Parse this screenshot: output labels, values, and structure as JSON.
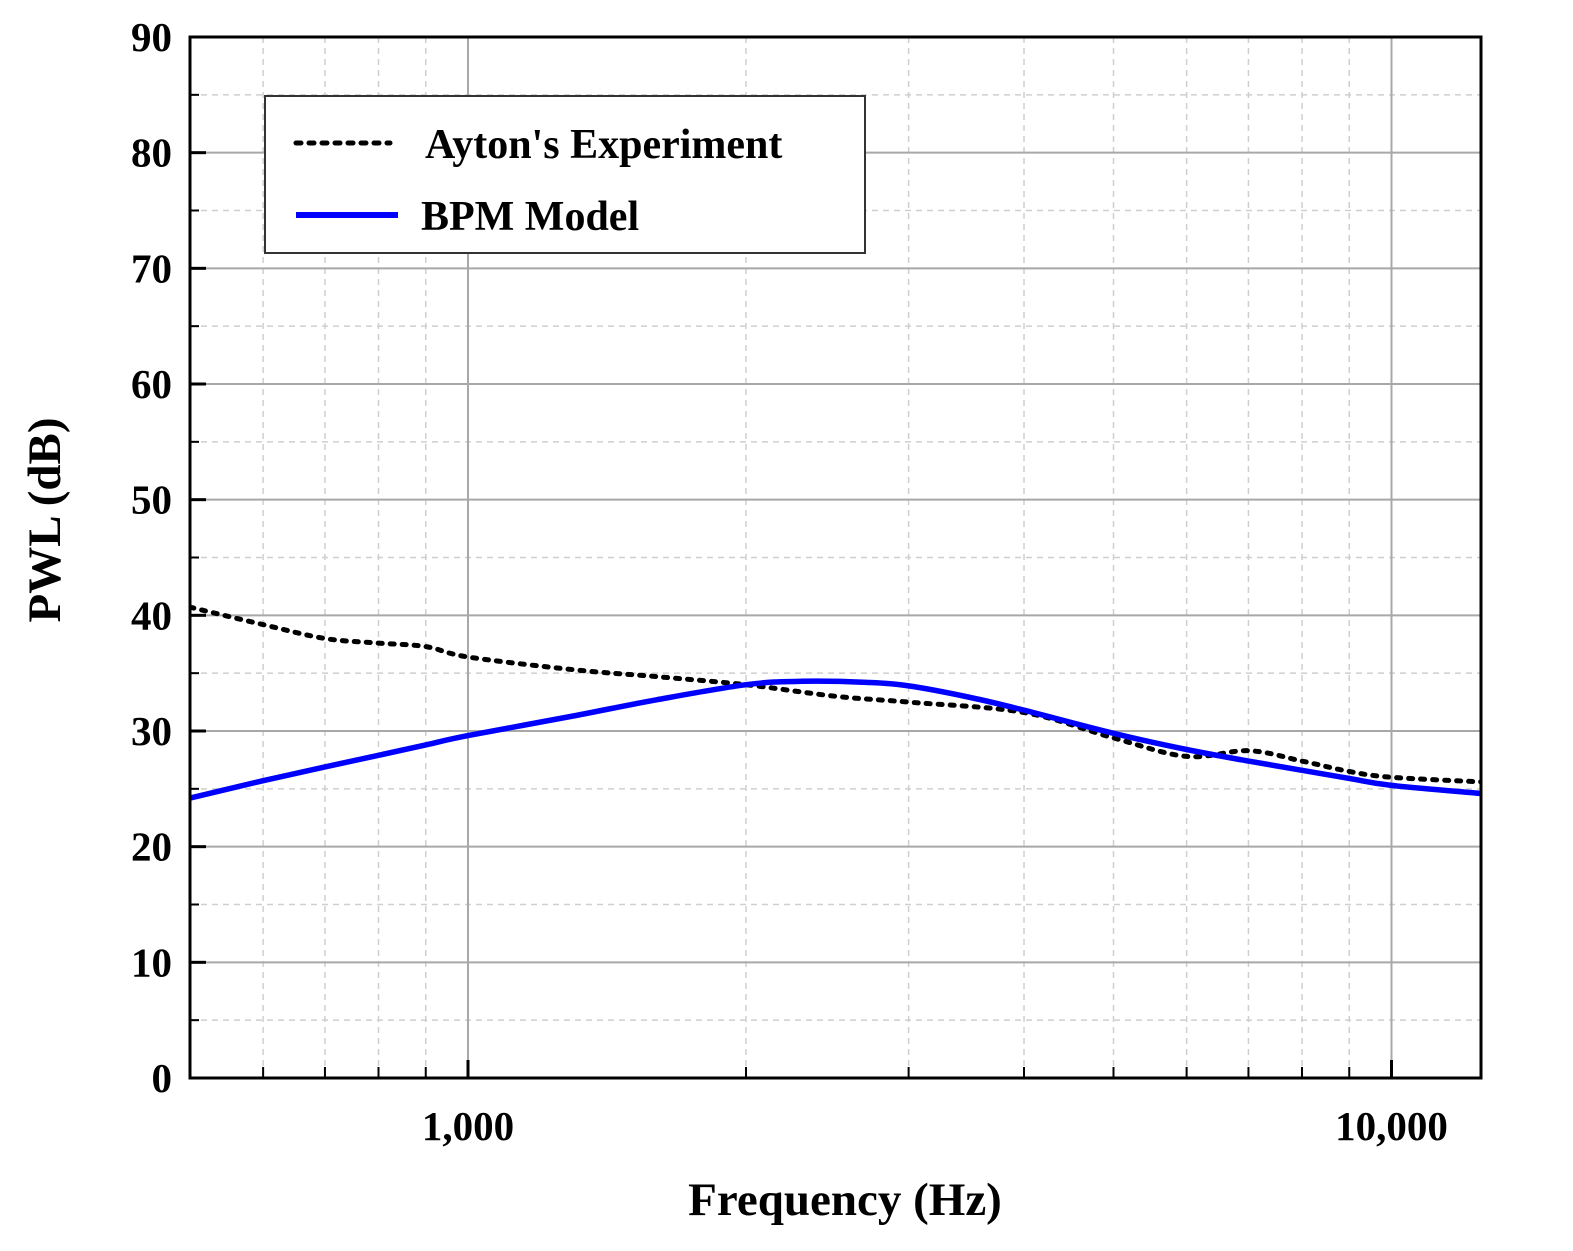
{
  "chart_data": {
    "type": "line",
    "xscale": "log",
    "xlim": [
      500,
      12500
    ],
    "ylim": [
      0,
      90
    ],
    "xlabel": "Frequency (Hz)",
    "ylabel": "PWL (dB)",
    "xticks": [
      {
        "value": 1000,
        "label": "1,000"
      },
      {
        "value": 10000,
        "label": "10,000"
      }
    ],
    "yticks": [
      {
        "value": 0,
        "label": "0"
      },
      {
        "value": 10,
        "label": "10"
      },
      {
        "value": 20,
        "label": "20"
      },
      {
        "value": 30,
        "label": "30"
      },
      {
        "value": 40,
        "label": "40"
      },
      {
        "value": 50,
        "label": "50"
      },
      {
        "value": 60,
        "label": "60"
      },
      {
        "value": 70,
        "label": "70"
      },
      {
        "value": 80,
        "label": "80"
      },
      {
        "value": 90,
        "label": "90"
      }
    ],
    "grid": true,
    "legend_position": "top-left",
    "series": [
      {
        "name": "Ayton's Experiment",
        "style": "dotted",
        "color": "#000000",
        "x": [
          500,
          600,
          700,
          800,
          900,
          1000,
          1300,
          1600,
          2000,
          2500,
          3000,
          4000,
          5000,
          6000,
          7000,
          8000,
          9000,
          10000,
          12500
        ],
        "y": [
          40.7,
          39.2,
          38.0,
          37.6,
          37.3,
          36.4,
          35.3,
          34.7,
          34.0,
          33.0,
          32.5,
          31.6,
          29.4,
          27.8,
          28.3,
          27.4,
          26.5,
          26.0,
          25.6
        ]
      },
      {
        "name": "BPM Model",
        "style": "solid",
        "color": "#0000ff",
        "x": [
          500,
          600,
          700,
          800,
          900,
          1000,
          1300,
          1600,
          2000,
          2300,
          2700,
          3000,
          3500,
          4000,
          5000,
          6000,
          7000,
          8000,
          9000,
          10000,
          12500
        ],
        "y": [
          24.2,
          25.7,
          26.9,
          27.9,
          28.8,
          29.6,
          31.3,
          32.7,
          34.0,
          34.3,
          34.2,
          33.9,
          32.9,
          31.8,
          29.8,
          28.4,
          27.4,
          26.6,
          25.9,
          25.3,
          24.6
        ]
      }
    ]
  }
}
